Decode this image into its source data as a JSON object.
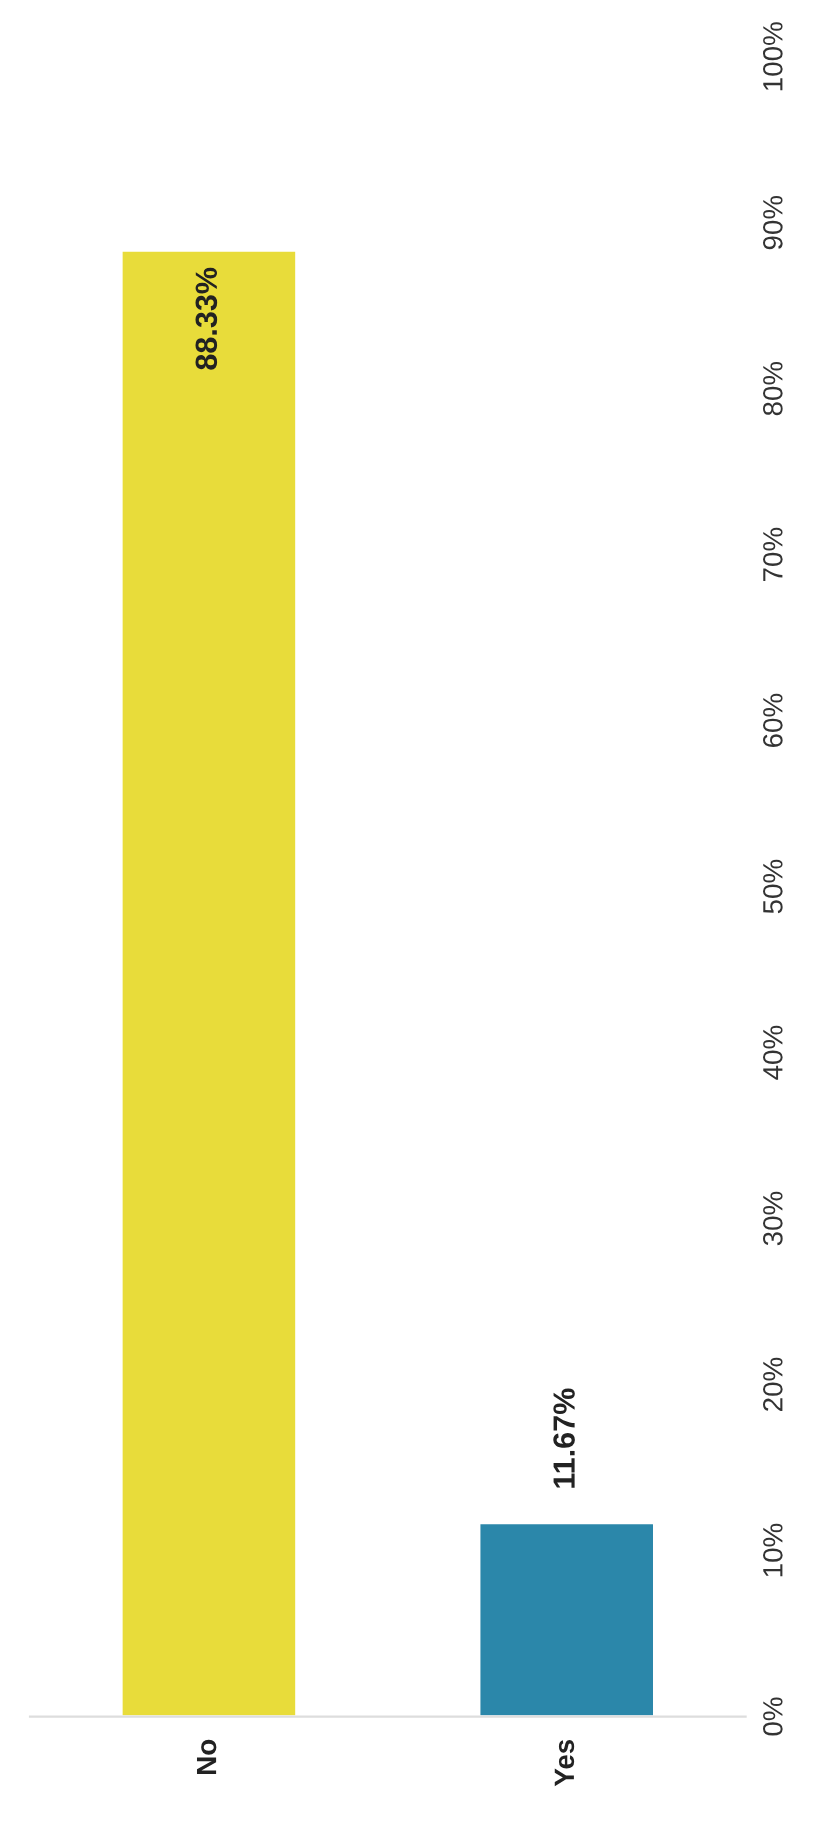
{
  "chart_data": {
    "type": "bar",
    "categories": [
      "No",
      "Yes"
    ],
    "values": [
      88.33,
      11.67
    ],
    "colors": [
      "#e8dc3a",
      "#2b87aa"
    ],
    "value_labels": [
      "88.33%",
      "11.67%"
    ],
    "ylim": [
      0,
      100
    ],
    "yticks": [
      {
        "value": 0,
        "label": "0%"
      },
      {
        "value": 10,
        "label": "10%"
      },
      {
        "value": 20,
        "label": "20%"
      },
      {
        "value": 30,
        "label": "30%"
      },
      {
        "value": 40,
        "label": "40%"
      },
      {
        "value": 50,
        "label": "50%"
      },
      {
        "value": 60,
        "label": "60%"
      },
      {
        "value": 70,
        "label": "70%"
      },
      {
        "value": 80,
        "label": "80%"
      },
      {
        "value": 90,
        "label": "90%"
      },
      {
        "value": 100,
        "label": "100%"
      }
    ],
    "grid": false
  }
}
